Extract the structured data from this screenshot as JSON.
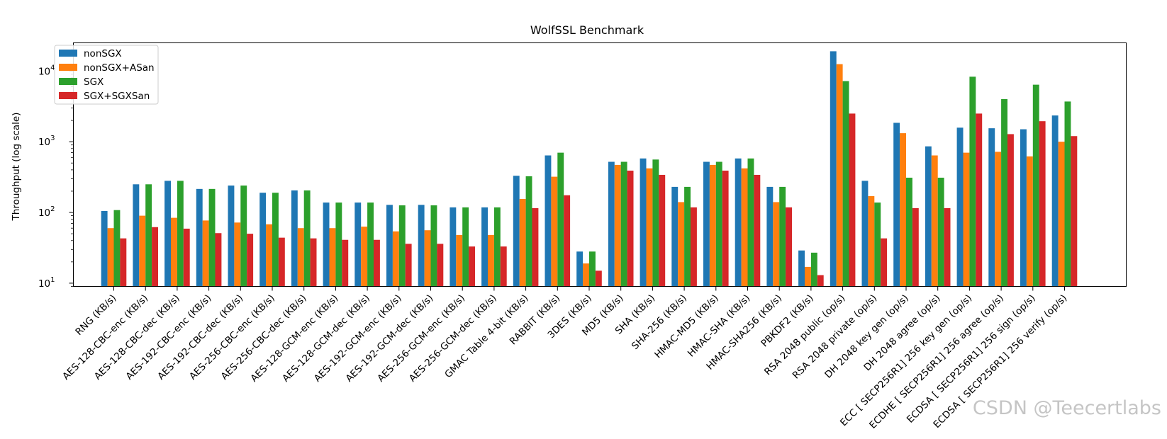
{
  "chart_data": {
    "type": "bar",
    "title": "WolfSSL Benchmark",
    "xlabel": "",
    "ylabel": "Throughput (log scale)",
    "yscale": "log",
    "ylim": [
      9,
      25000
    ],
    "yticks": [
      {
        "base": "10",
        "exp": "1"
      },
      {
        "base": "10",
        "exp": "2"
      },
      {
        "base": "10",
        "exp": "3"
      },
      {
        "base": "10",
        "exp": "4"
      }
    ],
    "legend_position": "upper-left",
    "categories": [
      "RNG (KB/s)",
      "AES-128-CBC-enc (KB/s)",
      "AES-128-CBC-dec (KB/s)",
      "AES-192-CBC-enc (KB/s)",
      "AES-192-CBC-dec (KB/s)",
      "AES-256-CBC-enc (KB/s)",
      "AES-256-CBC-dec (KB/s)",
      "AES-128-GCM-enc (KB/s)",
      "AES-128-GCM-dec (KB/s)",
      "AES-192-GCM-enc (KB/s)",
      "AES-192-GCM-dec (KB/s)",
      "AES-256-GCM-enc (KB/s)",
      "AES-256-GCM-dec (KB/s)",
      "GMAC Table 4-bit (KB/s)",
      "RABBIT (KB/s)",
      "3DES (KB/s)",
      "MD5 (KB/s)",
      "SHA (KB/s)",
      "SHA-256 (KB/s)",
      "HMAC-MD5 (KB/s)",
      "HMAC-SHA (KB/s)",
      "HMAC-SHA256 (KB/s)",
      "PBKDF2 (KB/s)",
      "RSA 2048 public (op/s)",
      "RSA 2048 private (op/s)",
      "DH 2048 key gen (op/s)",
      "DH 2048 agree (op/s)",
      "ECC [ SECP256R1] 256 key gen (op/s)",
      "ECDHE [ SECP256R1] 256 agree (op/s)",
      "ECDSA [ SECP256R1] 256 sign (op/s)",
      "ECDSA [ SECP256R1] 256 verify (op/s)"
    ],
    "series": [
      {
        "name": "nonSGX",
        "color": "#1f77b4",
        "values": [
          105,
          250,
          280,
          215,
          240,
          190,
          205,
          138,
          138,
          128,
          128,
          118,
          118,
          330,
          640,
          28,
          520,
          580,
          230,
          520,
          580,
          230,
          29,
          19000,
          280,
          1850,
          860,
          1580,
          1550,
          1500,
          2350
        ]
      },
      {
        "name": "nonSGX+ASan",
        "color": "#ff7f0e",
        "values": [
          60,
          90,
          84,
          77,
          72,
          68,
          60,
          60,
          63,
          54,
          56,
          48,
          48,
          155,
          320,
          19,
          470,
          420,
          140,
          470,
          420,
          140,
          17,
          12500,
          170,
          1320,
          640,
          700,
          720,
          620,
          1000
        ]
      },
      {
        "name": "SGX",
        "color": "#2ca02c",
        "values": [
          108,
          250,
          280,
          215,
          240,
          190,
          205,
          138,
          138,
          126,
          126,
          118,
          118,
          325,
          700,
          28,
          520,
          560,
          230,
          520,
          580,
          230,
          27,
          7200,
          138,
          310,
          310,
          8300,
          4000,
          6400,
          3700
        ]
      },
      {
        "name": "SGX+SGXSan",
        "color": "#d62728",
        "values": [
          43,
          62,
          59,
          51,
          50,
          44,
          43,
          41,
          41,
          36,
          36,
          33,
          33,
          115,
          175,
          15,
          390,
          340,
          118,
          390,
          340,
          118,
          13,
          2500,
          43,
          115,
          115,
          2500,
          1280,
          1950,
          1200
        ]
      }
    ]
  },
  "watermark": "CSDN @Teecertlabs"
}
